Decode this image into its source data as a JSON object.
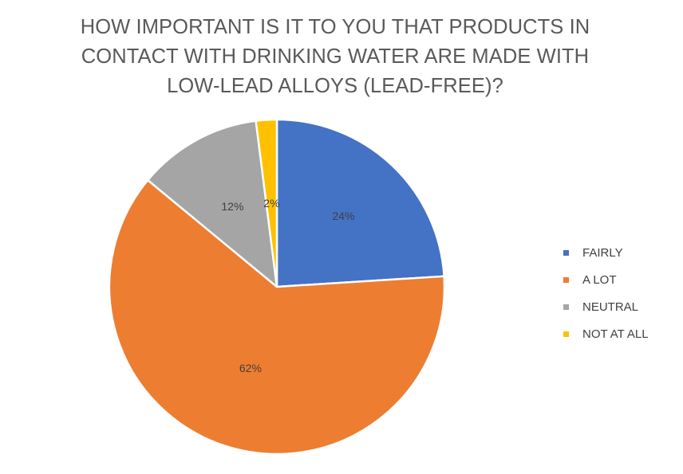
{
  "title": {
    "lines": [
      "HOW IMPORTANT IS IT TO YOU THAT PRODUCTS IN",
      "CONTACT WITH DRINKING WATER ARE MADE WITH",
      "LOW-LEAD ALLOYS (LEAD-FREE)?"
    ]
  },
  "chart_data": {
    "type": "pie",
    "title": "HOW IMPORTANT IS IT TO YOU THAT PRODUCTS IN CONTACT WITH DRINKING WATER ARE MADE WITH LOW-LEAD ALLOYS (LEAD-FREE)?",
    "categories": [
      "FAIRLY",
      "A LOT",
      "NEUTRAL",
      "NOT AT ALL"
    ],
    "values": [
      24,
      62,
      12,
      2
    ],
    "data_labels": [
      "24%",
      "62%",
      "12%",
      "2%"
    ],
    "colors": [
      "#4472C4",
      "#ED7D31",
      "#A5A5A5",
      "#FFC000"
    ],
    "start_angle": "12 o'clock, clockwise",
    "legend_position": "right"
  }
}
